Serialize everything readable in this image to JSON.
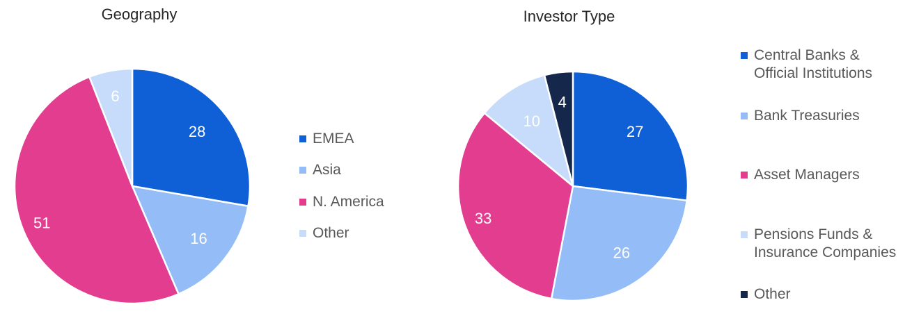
{
  "charts": {
    "geography": {
      "title": "Geography"
    },
    "investor_type": {
      "title": "Investor Type"
    }
  },
  "chart_data": [
    {
      "type": "pie",
      "title": "Geography",
      "categories": [
        "EMEA",
        "Asia",
        "N. America",
        "Other"
      ],
      "values": [
        28,
        16,
        51,
        6
      ],
      "labels": [
        "28",
        "16",
        "51",
        "6"
      ],
      "colors": [
        "#0f5fd6",
        "#94bdf7",
        "#e23d8f",
        "#c6dcfa"
      ],
      "legend_position": "right"
    },
    {
      "type": "pie",
      "title": "Investor Type",
      "categories": [
        "Central Banks & Official Institutions",
        "Bank Treasuries",
        "Asset Managers",
        "Pensions Funds & Insurance Companies",
        "Other"
      ],
      "legend_lines": [
        [
          "Central Banks &",
          "Official Institutions"
        ],
        [
          "Bank Treasuries"
        ],
        [
          "Asset Managers"
        ],
        [
          "Pensions Funds &",
          "Insurance Companies"
        ],
        [
          "Other"
        ]
      ],
      "values": [
        27,
        26,
        33,
        10,
        4
      ],
      "labels": [
        "27",
        "26",
        "33",
        "10",
        "4"
      ],
      "colors": [
        "#0f5fd6",
        "#94bdf7",
        "#e23d8f",
        "#c6dcfa",
        "#15284b"
      ],
      "legend_position": "right"
    }
  ]
}
